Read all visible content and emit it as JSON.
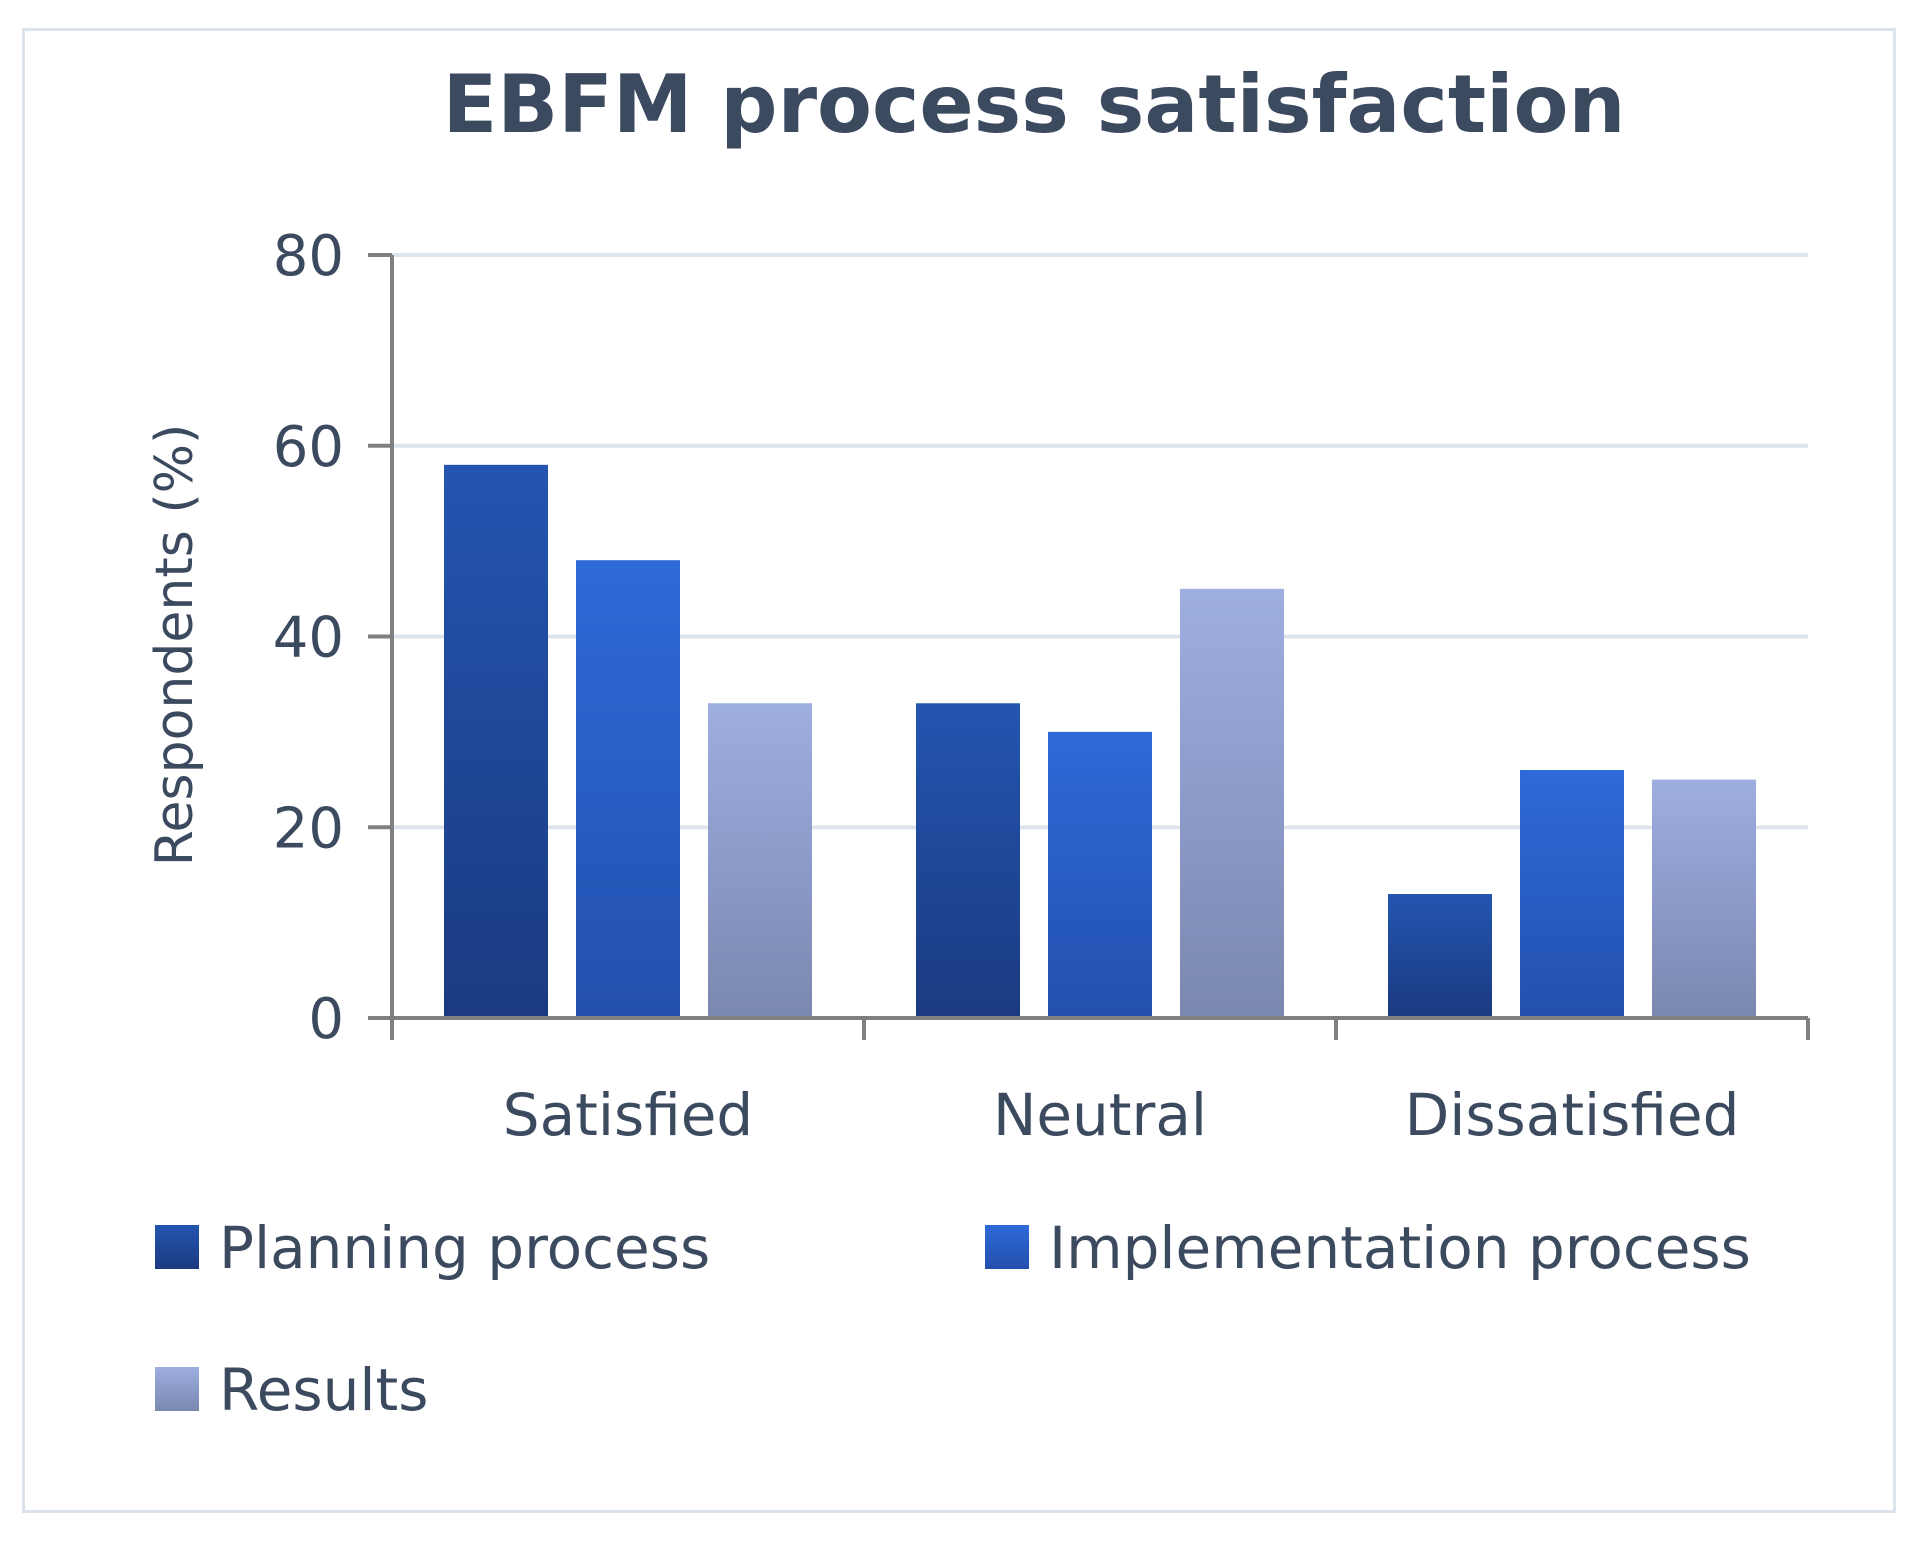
{
  "chart_data": {
    "type": "bar",
    "title": "EBFM process satisfaction",
    "xlabel": "",
    "ylabel": "Respondents (%)",
    "ylim": [
      0,
      80
    ],
    "yticks": [
      0,
      20,
      40,
      60,
      80
    ],
    "ytick_labels": [
      "0",
      "20",
      "40",
      "60",
      "80"
    ],
    "grid": true,
    "legend_position": "bottom",
    "categories": [
      "Satisfied",
      "Neutral",
      "Dissatisfied"
    ],
    "series": [
      {
        "name": "Planning process",
        "values": [
          58,
          33,
          13
        ],
        "color_top": "#2355b0",
        "color_bottom": "#1b3a80"
      },
      {
        "name": "Implementation process",
        "values": [
          48,
          30,
          26
        ],
        "color_top": "#2e6ad8",
        "color_bottom": "#2350ae"
      },
      {
        "name": "Results",
        "values": [
          33,
          45,
          25
        ],
        "color_top": "#9daee0",
        "color_bottom": "#7a88b0"
      }
    ]
  }
}
